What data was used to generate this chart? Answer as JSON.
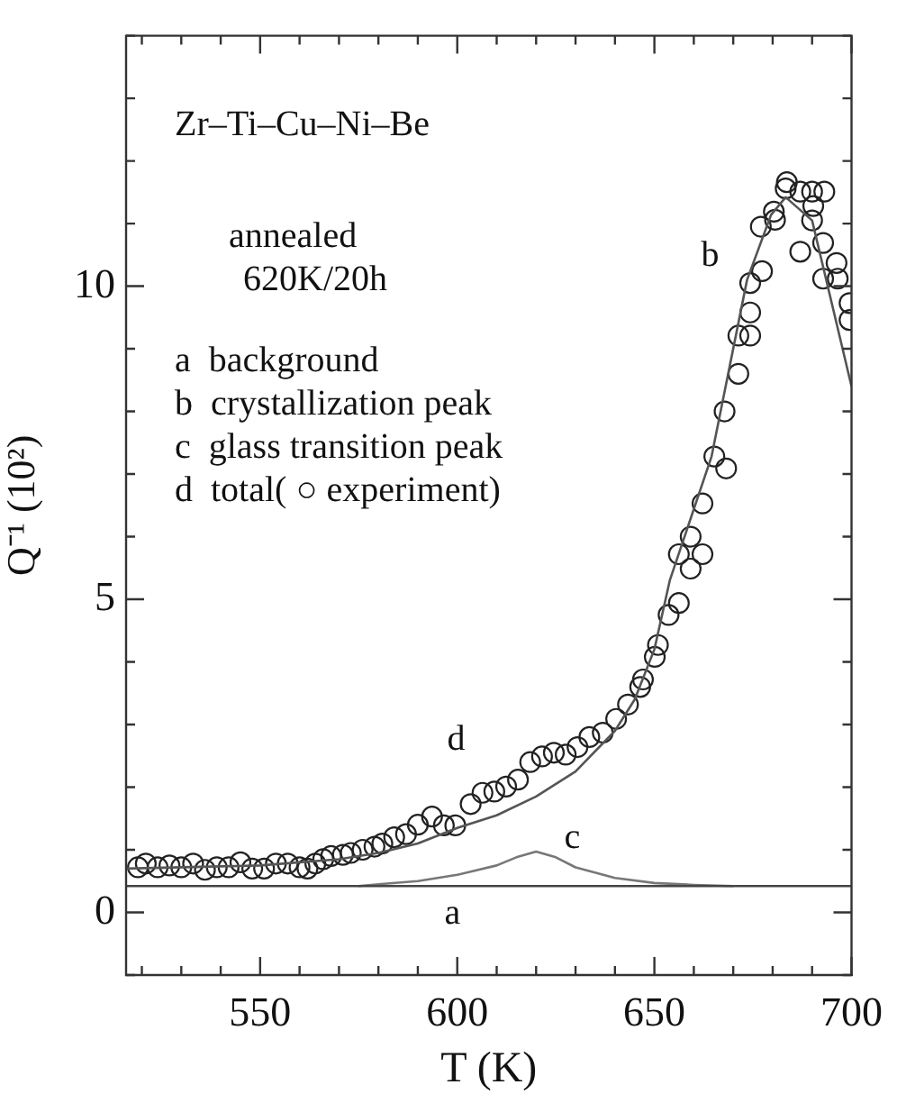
{
  "chart_data": {
    "type": "line",
    "xlabel": "T (K)",
    "ylabel": "Q⁻¹ (10²)",
    "xlim": [
      516,
      700
    ],
    "ylim": [
      -1,
      14
    ],
    "xticks": [
      {
        "value": 520,
        "label": null
      },
      {
        "value": 530,
        "label": null
      },
      {
        "value": 540,
        "label": null
      },
      550,
      {
        "value": 560,
        "label": null
      },
      {
        "value": 570,
        "label": null
      },
      {
        "value": 580,
        "label": null
      },
      {
        "value": 590,
        "label": null
      },
      600,
      {
        "value": 610,
        "label": null
      },
      {
        "value": 620,
        "label": null
      },
      {
        "value": 630,
        "label": null
      },
      {
        "value": 640,
        "label": null
      },
      650,
      {
        "value": 660,
        "label": null
      },
      {
        "value": 670,
        "label": null
      },
      {
        "value": 680,
        "label": null
      },
      {
        "value": 690,
        "label": null
      },
      700
    ],
    "yticks": [
      {
        "value": -1,
        "label": null
      },
      0,
      {
        "value": 1,
        "label": null
      },
      {
        "value": 2,
        "label": null
      },
      {
        "value": 3,
        "label": null
      },
      {
        "value": 4,
        "label": null
      },
      5,
      {
        "value": 6,
        "label": null
      },
      {
        "value": 7,
        "label": null
      },
      {
        "value": 8,
        "label": null
      },
      {
        "value": 9,
        "label": null
      },
      10,
      {
        "value": 11,
        "label": null
      },
      {
        "value": 12,
        "label": null
      },
      {
        "value": 13,
        "label": null
      },
      {
        "value": 14,
        "label": null
      }
    ],
    "grid": false,
    "legend": false,
    "series": [
      {
        "name": "a",
        "color": "#444444",
        "marker": "none",
        "x": [
          516,
          700
        ],
        "values": [
          0.42,
          0.42
        ]
      },
      {
        "name": "c",
        "color": "#777777",
        "marker": "none",
        "x": [
          575,
          580,
          590,
          600,
          610,
          615,
          620,
          625,
          630,
          640,
          650,
          660,
          670
        ],
        "values": [
          0.42,
          0.45,
          0.5,
          0.6,
          0.75,
          0.88,
          0.97,
          0.88,
          0.72,
          0.55,
          0.47,
          0.44,
          0.42
        ]
      },
      {
        "name": "b",
        "color": "#555555",
        "marker": "none",
        "x": [
          516,
          550,
          570,
          580,
          590,
          600,
          610,
          620,
          630,
          640,
          645,
          650,
          653.9,
          664.5,
          673.5,
          679.6,
          683.3,
          690,
          700
        ],
        "values": [
          0.7,
          0.75,
          0.85,
          0.95,
          1.1,
          1.35,
          1.55,
          1.85,
          2.25,
          2.9,
          3.4,
          4.2,
          5.3,
          7.28,
          10.1,
          11.14,
          11.42,
          11.05,
          8.4
        ]
      },
      {
        "type": "scatter",
        "name": "d",
        "color": "#222222",
        "marker": "circle",
        "x": [
          519,
          521,
          524,
          527,
          530,
          533,
          536,
          539,
          542,
          545,
          548,
          551,
          554,
          557,
          560,
          562,
          564,
          566,
          568,
          571,
          573,
          576,
          579,
          581,
          584,
          587,
          590,
          593.6,
          596.6,
          599.5,
          603.4,
          606.4,
          609.4,
          612.4,
          615.4,
          618.5,
          621.5,
          624.5,
          627.5,
          630.5,
          633.5,
          636.9,
          640.3,
          643.3,
          646.4,
          647.1,
          650.1,
          650.9,
          653.6,
          656.2,
          656.2,
          659.2,
          659.2,
          662.2,
          662.2,
          665.2,
          668.2,
          667.8,
          671.3,
          671.3,
          674.3,
          674.3,
          674.3,
          677.3,
          677,
          680.3,
          680.6,
          683.6,
          683.3,
          687,
          687,
          690,
          690.3,
          690,
          693.1,
          692.8,
          692.8,
          696.2,
          696.5,
          699.5,
          699.5
        ],
        "values": [
          0.72,
          0.78,
          0.72,
          0.75,
          0.72,
          0.78,
          0.68,
          0.72,
          0.72,
          0.8,
          0.7,
          0.7,
          0.78,
          0.78,
          0.72,
          0.7,
          0.78,
          0.85,
          0.9,
          0.92,
          0.95,
          1.0,
          1.05,
          1.1,
          1.2,
          1.25,
          1.4,
          1.53,
          1.39,
          1.39,
          1.73,
          1.91,
          1.93,
          2.01,
          2.12,
          2.4,
          2.49,
          2.55,
          2.52,
          2.64,
          2.8,
          2.87,
          3.09,
          3.32,
          3.6,
          3.72,
          4.08,
          4.27,
          4.75,
          4.94,
          5.72,
          6.0,
          5.49,
          5.72,
          6.53,
          7.28,
          7.09,
          8.0,
          8.6,
          9.21,
          9.21,
          9.58,
          10.05,
          10.24,
          10.95,
          11.19,
          11.06,
          11.66,
          11.56,
          11.51,
          10.55,
          11.51,
          11.28,
          11.05,
          11.51,
          10.69,
          10.12,
          10.37,
          10.12,
          9.73,
          9.46
        ]
      }
    ],
    "annotations": [
      "Zr–Ti–Cu–Ni–Be",
      "annealed",
      "620K/20h",
      "a  background",
      "b  crystallization peak",
      "c  glass transition peak",
      "d  total( ○ experiment)"
    ]
  }
}
